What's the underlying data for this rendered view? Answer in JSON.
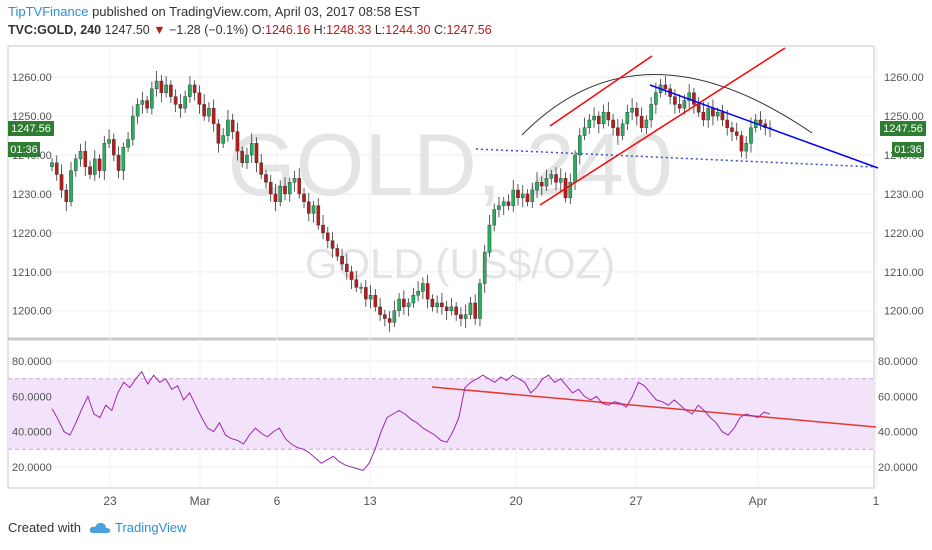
{
  "header": {
    "author": "TipTVFinance",
    "published_text": "published on TradingView.com, April 03, 2017 08:58 EST",
    "symbol": "TVC:GOLD, 240",
    "last": "1247.50",
    "change": "−1.28 (−0.1%)",
    "o_label": "O:",
    "o_value": "1246.16",
    "h_label": "H:",
    "h_value": "1248.33",
    "l_label": "L:",
    "l_value": "1244.30",
    "c_label": "C:",
    "c_value": "1247.56"
  },
  "watermark": {
    "big": "GOLD, 240",
    "small": "GOLD (US$/OZ)"
  },
  "footer": {
    "created_with": "Created with",
    "brand": "TradingView"
  },
  "colors": {
    "up": "#27ae60",
    "down": "#b71c1c",
    "channel": "#ff0000",
    "trend_blue": "#0000ff",
    "arc": "#333333",
    "rsi": "#9c27b0",
    "rsi_band": "#f0dcf8",
    "rsi_trend": "#e53935",
    "label_bg": "#2e7d32"
  },
  "chart_data": [
    {
      "type": "candlestick",
      "title": "TVC:GOLD, 240",
      "y_range": [
        1193,
        1268
      ],
      "y_ticks": [
        "1260.00",
        "1250.00",
        "1240.00",
        "1230.00",
        "1220.00",
        "1210.00",
        "1200.00"
      ],
      "y_tick_values": [
        1260,
        1250,
        1240,
        1230,
        1220,
        1210,
        1200
      ],
      "price_label": "1247.56",
      "countdown_label": "01:36",
      "x_labels": [
        "23",
        "Mar",
        "6",
        "13",
        "20",
        "27",
        "Apr",
        "1"
      ],
      "closes": [
        1238,
        1235,
        1231,
        1228,
        1236,
        1239,
        1241,
        1237,
        1235,
        1239,
        1236,
        1243,
        1244,
        1240,
        1236,
        1242,
        1244,
        1250,
        1253,
        1254,
        1252,
        1257,
        1259,
        1256,
        1258,
        1255,
        1253,
        1252,
        1255,
        1258,
        1256,
        1253,
        1250,
        1252,
        1248,
        1243,
        1245,
        1249,
        1246,
        1241,
        1238,
        1240,
        1243,
        1238,
        1235,
        1233,
        1230,
        1228,
        1232,
        1230,
        1233,
        1234,
        1230,
        1228,
        1225,
        1227,
        1222,
        1220,
        1218,
        1216,
        1214,
        1212,
        1210,
        1208,
        1206,
        1206,
        1203,
        1204,
        1201,
        1199,
        1198,
        1197,
        1200,
        1203,
        1201,
        1202,
        1204,
        1205,
        1207,
        1203,
        1201,
        1202,
        1201,
        1200,
        1201,
        1199,
        1198,
        1199,
        1202,
        1198,
        1207,
        1215,
        1222,
        1226,
        1227,
        1228,
        1227,
        1231,
        1229,
        1230,
        1228,
        1231,
        1233,
        1232,
        1234,
        1235,
        1233,
        1234,
        1229,
        1233,
        1240,
        1245,
        1247,
        1249,
        1250,
        1248,
        1251,
        1249,
        1247,
        1245,
        1248,
        1251,
        1252,
        1250,
        1247,
        1249,
        1253,
        1256,
        1258,
        1257,
        1255,
        1253,
        1252,
        1254,
        1256,
        1253,
        1251,
        1249,
        1252,
        1250,
        1251,
        1249,
        1247,
        1246,
        1245,
        1241,
        1243,
        1247,
        1249,
        1248,
        1247,
        1247
      ]
    },
    {
      "type": "line",
      "title": "RSI",
      "y_range": [
        8,
        92
      ],
      "y_ticks": [
        "80.0000",
        "60.0000",
        "40.0000",
        "20.0000"
      ],
      "y_tick_values": [
        80,
        60,
        40,
        20
      ],
      "band": [
        30,
        70
      ],
      "values": [
        53,
        47,
        40,
        38,
        45,
        53,
        60,
        50,
        48,
        55,
        52,
        62,
        68,
        65,
        70,
        74,
        67,
        72,
        68,
        70,
        64,
        66,
        58,
        62,
        55,
        48,
        42,
        40,
        45,
        38,
        36,
        35,
        33,
        38,
        42,
        39,
        37,
        40,
        42,
        36,
        33,
        31,
        30,
        28,
        25,
        22,
        24,
        26,
        23,
        21,
        20,
        19,
        18,
        22,
        30,
        40,
        48,
        50,
        52,
        50,
        47,
        45,
        42,
        40,
        38,
        35,
        34,
        40,
        48,
        65,
        68,
        70,
        72,
        70,
        68,
        71,
        69,
        72,
        70,
        68,
        62,
        65,
        70,
        72,
        68,
        70,
        66,
        62,
        64,
        60,
        58,
        60,
        56,
        55,
        57,
        56,
        54,
        60,
        68,
        66,
        62,
        58,
        57,
        55,
        58,
        55,
        52,
        50,
        55,
        52,
        48,
        45,
        40,
        38,
        42,
        48,
        50,
        49,
        48,
        51,
        50
      ],
      "trendline_note": ""
    }
  ]
}
